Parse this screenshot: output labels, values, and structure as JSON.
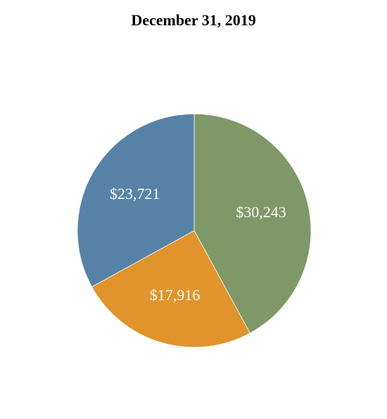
{
  "chart_data": {
    "type": "pie",
    "title": "December 31, 2019",
    "slices": [
      {
        "label": "$30,243",
        "value": 30243,
        "color": "#7f9867"
      },
      {
        "label": "$17,916",
        "value": 17916,
        "color": "#e0942b"
      },
      {
        "label": "$23,721",
        "value": 23721,
        "color": "#5782a7"
      }
    ],
    "legend": "none",
    "start_angle": "12 o'clock, clockwise"
  }
}
